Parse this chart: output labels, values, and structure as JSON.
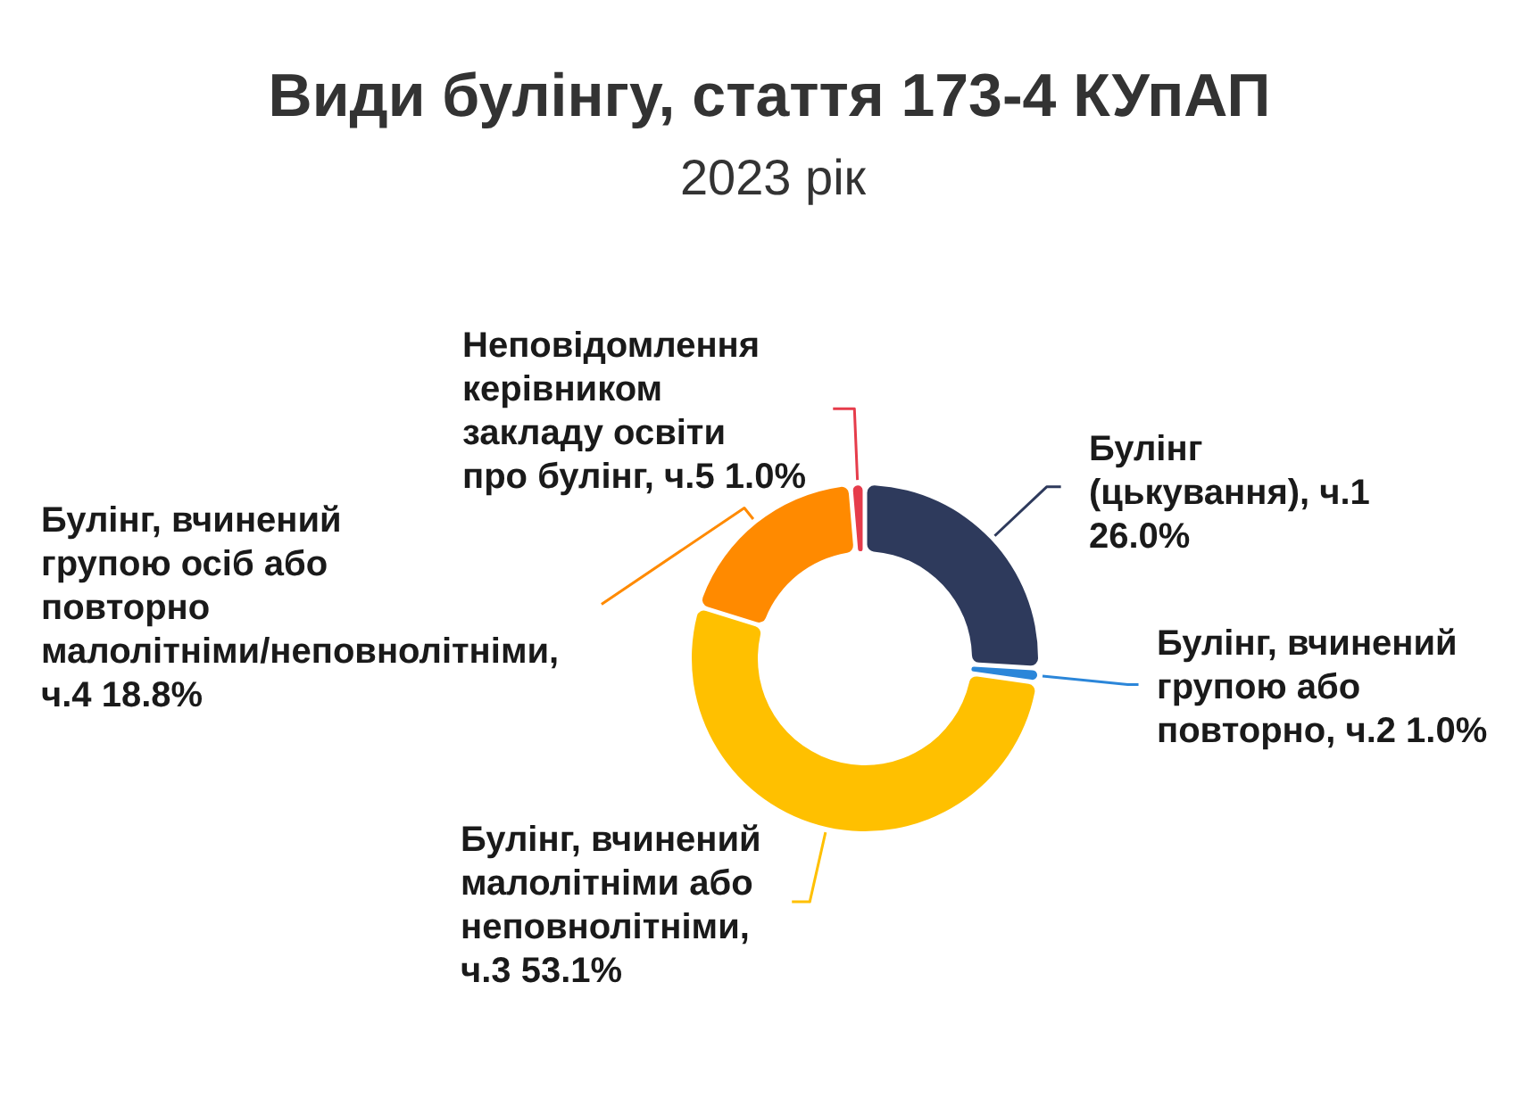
{
  "chart_data": {
    "type": "donut",
    "title": "Види булінгу, стаття 173-4 КУпАП",
    "subtitle": "2023 рік",
    "categories": [
      "Булінг (цькування), ч.1",
      "Булінг, вчинений групою або повторно, ч.2",
      "Булінг, вчинений малолітніми або неповнолітніми, ч.3",
      "Булінг, вчинений групою осіб або повторно малолітніми/неповнолітніми, ч.4",
      "Неповідомлення керівником закладу освіти про булінг, ч.5"
    ],
    "values": [
      26.0,
      1.0,
      53.1,
      18.8,
      1.0
    ],
    "colors": [
      "#2e3a5c",
      "#2b86d9",
      "#ffc000",
      "#ff8a00",
      "#e63c4b"
    ],
    "value_labels": [
      "26.0%",
      "1.0%",
      "53.1%",
      "18.8%",
      "1.0%"
    ]
  }
}
